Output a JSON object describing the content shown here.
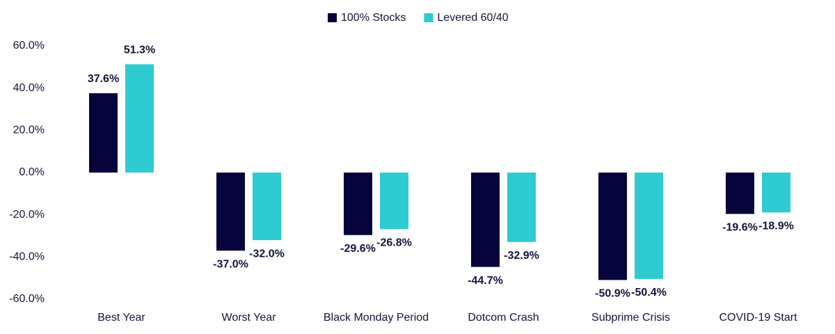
{
  "chart_data": {
    "type": "bar",
    "categories": [
      "Best Year",
      "Worst Year",
      "Black Monday Period",
      "Dotcom Crash",
      "Subprime Crisis",
      "COVID-19 Start"
    ],
    "series": [
      {
        "name": "100% Stocks",
        "color": "#06043a",
        "values": [
          37.6,
          -37.0,
          -29.6,
          -44.7,
          -50.9,
          -19.6
        ],
        "value_labels": [
          "37.6%",
          "-37.0%",
          "-29.6%",
          "-44.7%",
          "-50.9%",
          "-19.6%"
        ]
      },
      {
        "name": "Levered 60/40",
        "color": "#2ecbd3",
        "values": [
          51.3,
          -32.0,
          -26.8,
          -32.9,
          -50.4,
          -18.9
        ],
        "value_labels": [
          "51.3%",
          "-32.0%",
          "-26.8%",
          "-32.9%",
          "-50.4%",
          "-18.9%"
        ]
      }
    ],
    "ylim": [
      -60,
      60
    ],
    "yticks": [
      {
        "value": -60,
        "label": "-60.0%"
      },
      {
        "value": -40,
        "label": "-40.0%"
      },
      {
        "value": -20,
        "label": "-20.0%"
      },
      {
        "value": 0,
        "label": "0.0%"
      },
      {
        "value": 20,
        "label": "20.0%"
      },
      {
        "value": 40,
        "label": "40.0%"
      },
      {
        "value": 60,
        "label": "60.0%"
      }
    ],
    "grid": false,
    "legend": "top"
  }
}
